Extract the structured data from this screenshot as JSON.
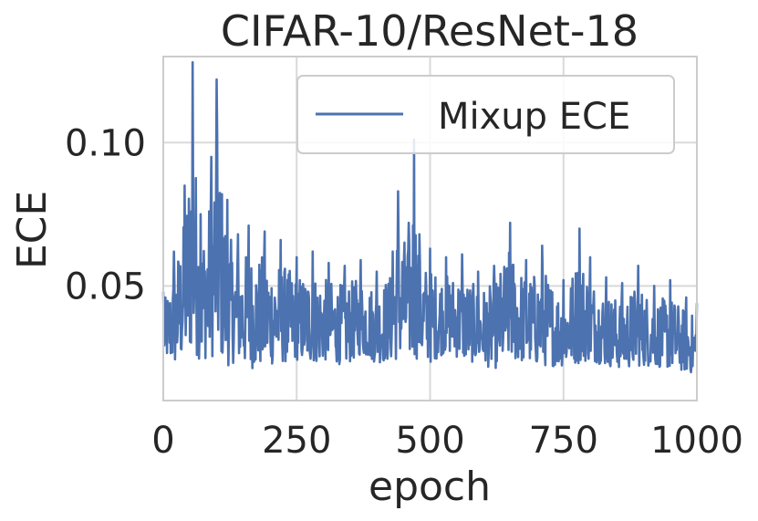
{
  "chart_data": {
    "type": "line",
    "title": "CIFAR-10/ResNet-18",
    "xlabel": "epoch",
    "ylabel": "ECE",
    "xlim": [
      0,
      1000
    ],
    "ylim": [
      0.01,
      0.13
    ],
    "xticks": [
      0,
      250,
      500,
      750,
      1000
    ],
    "xtick_labels": [
      "0",
      "250",
      "500",
      "750",
      "1000"
    ],
    "yticks": [
      0.05,
      0.1
    ],
    "ytick_labels": [
      "0.05",
      "0.10"
    ],
    "grid": true,
    "legend_position": "top-right",
    "series": [
      {
        "name": "Mixup ECE",
        "color": "#4c72b0",
        "x": [
          0,
          20,
          40,
          55,
          70,
          90,
          100,
          120,
          140,
          160,
          190,
          220,
          250,
          280,
          310,
          340,
          370,
          400,
          430,
          440,
          460,
          470,
          480,
          500,
          530,
          560,
          590,
          620,
          650,
          680,
          710,
          750,
          780,
          800,
          830,
          860,
          890,
          920,
          950,
          980,
          1000
        ],
        "y": [
          0.048,
          0.062,
          0.085,
          0.128,
          0.075,
          0.095,
          0.122,
          0.08,
          0.068,
          0.071,
          0.069,
          0.066,
          0.06,
          0.062,
          0.058,
          0.057,
          0.059,
          0.055,
          0.062,
          0.083,
          0.072,
          0.101,
          0.068,
          0.063,
          0.06,
          0.061,
          0.055,
          0.057,
          0.072,
          0.059,
          0.064,
          0.052,
          0.07,
          0.06,
          0.053,
          0.051,
          0.057,
          0.05,
          0.052,
          0.046,
          0.044
        ],
        "y_low": [
          0.025,
          0.022,
          0.024,
          0.027,
          0.024,
          0.025,
          0.026,
          0.022,
          0.024,
          0.021,
          0.022,
          0.023,
          0.024,
          0.023,
          0.024,
          0.022,
          0.026,
          0.023,
          0.024,
          0.024,
          0.025,
          0.024,
          0.025,
          0.023,
          0.027,
          0.024,
          0.023,
          0.021,
          0.024,
          0.023,
          0.022,
          0.022,
          0.023,
          0.024,
          0.022,
          0.021,
          0.022,
          0.022,
          0.021,
          0.02,
          0.019
        ]
      }
    ]
  }
}
